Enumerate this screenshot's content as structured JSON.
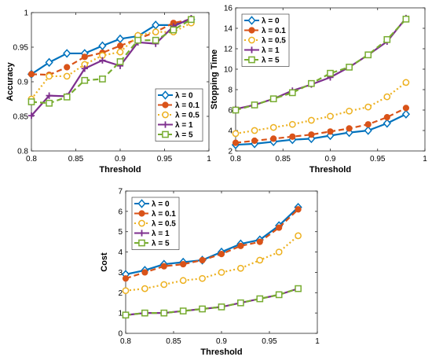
{
  "chart_data": [
    {
      "type": "line",
      "xlabel": "Threshold",
      "ylabel": "Accuracy",
      "xlim": [
        0.8,
        1
      ],
      "ylim": [
        0.8,
        1
      ],
      "xticks": [
        0.8,
        0.85,
        0.9,
        0.95,
        1
      ],
      "yticks": [
        0.8,
        0.85,
        0.9,
        0.95,
        1
      ],
      "x": [
        0.8,
        0.82,
        0.84,
        0.86,
        0.88,
        0.9,
        0.92,
        0.94,
        0.96,
        0.98
      ],
      "legend": "bottom-right",
      "grid": false,
      "series": [
        {
          "name": "λ = 0",
          "values": [
            0.911,
            0.928,
            0.941,
            0.941,
            0.952,
            0.962,
            0.966,
            0.982,
            0.982,
            0.99
          ]
        },
        {
          "name": "λ = 0.1",
          "values": [
            0.911,
            0.91,
            0.921,
            0.936,
            0.942,
            0.952,
            0.962,
            0.972,
            0.985,
            0.99
          ]
        },
        {
          "name": "λ = 0.5",
          "values": [
            0.875,
            0.908,
            0.908,
            0.925,
            0.938,
            0.943,
            0.967,
            0.972,
            0.972,
            0.985
          ]
        },
        {
          "name": "λ = 1",
          "values": [
            0.851,
            0.88,
            0.879,
            0.919,
            0.931,
            0.923,
            0.957,
            0.955,
            0.98,
            0.992
          ]
        },
        {
          "name": "λ = 5",
          "values": [
            0.871,
            0.869,
            0.878,
            0.902,
            0.904,
            0.929,
            0.96,
            0.96,
            0.975,
            0.99
          ]
        }
      ]
    },
    {
      "type": "line",
      "xlabel": "Threshold",
      "ylabel": "Stopping Time",
      "xlim": [
        0.8,
        1
      ],
      "ylim": [
        2,
        16
      ],
      "xticks": [
        0.8,
        0.85,
        0.9,
        0.95,
        1
      ],
      "yticks": [
        2,
        4,
        6,
        8,
        10,
        12,
        14,
        16
      ],
      "x": [
        0.8,
        0.82,
        0.84,
        0.86,
        0.88,
        0.9,
        0.92,
        0.94,
        0.96,
        0.98
      ],
      "legend": "top-left",
      "grid": false,
      "series": [
        {
          "name": "λ = 0",
          "values": [
            2.6,
            2.7,
            2.9,
            3.1,
            3.2,
            3.5,
            3.8,
            4.0,
            4.7,
            5.6
          ]
        },
        {
          "name": "λ = 0.1",
          "values": [
            2.8,
            3.0,
            3.2,
            3.4,
            3.6,
            3.9,
            4.2,
            4.6,
            5.3,
            6.2
          ]
        },
        {
          "name": "λ = 0.5",
          "values": [
            3.7,
            4.0,
            4.3,
            4.6,
            5.0,
            5.4,
            5.9,
            6.3,
            7.3,
            8.7
          ]
        },
        {
          "name": "λ = 1",
          "values": [
            6.1,
            6.5,
            7.1,
            7.9,
            8.5,
            9.2,
            10.2,
            11.4,
            12.7,
            15.0
          ]
        },
        {
          "name": "λ = 5",
          "values": [
            6.0,
            6.5,
            7.1,
            7.7,
            8.6,
            9.6,
            10.2,
            11.4,
            12.9,
            14.9
          ]
        }
      ]
    },
    {
      "type": "line",
      "xlabel": "Threshold",
      "ylabel": "Cost",
      "xlim": [
        0.8,
        1
      ],
      "ylim": [
        0,
        7
      ],
      "xticks": [
        0.8,
        0.85,
        0.9,
        0.95,
        1
      ],
      "yticks": [
        0,
        1,
        2,
        3,
        4,
        5,
        6,
        7
      ],
      "x": [
        0.8,
        0.82,
        0.84,
        0.86,
        0.88,
        0.9,
        0.92,
        0.94,
        0.96,
        0.98
      ],
      "legend": "top-left",
      "grid": false,
      "series": [
        {
          "name": "λ = 0",
          "values": [
            2.9,
            3.1,
            3.4,
            3.5,
            3.6,
            4.0,
            4.4,
            4.6,
            5.3,
            6.2
          ]
        },
        {
          "name": "λ = 0.1",
          "values": [
            2.7,
            3.0,
            3.3,
            3.4,
            3.6,
            3.9,
            4.3,
            4.5,
            5.2,
            6.1
          ]
        },
        {
          "name": "λ = 0.5",
          "values": [
            2.1,
            2.2,
            2.4,
            2.6,
            2.7,
            3.0,
            3.2,
            3.6,
            4.0,
            4.8
          ]
        },
        {
          "name": "λ = 1",
          "values": [
            0.9,
            1.0,
            1.0,
            1.1,
            1.2,
            1.3,
            1.5,
            1.7,
            1.9,
            2.2
          ]
        },
        {
          "name": "λ = 5",
          "values": [
            0.9,
            1.0,
            1.0,
            1.1,
            1.2,
            1.3,
            1.5,
            1.7,
            1.9,
            2.2
          ]
        }
      ]
    }
  ],
  "series_colors": [
    "#0072BD",
    "#D95319",
    "#EDB120",
    "#7E2F8E",
    "#77AC30"
  ],
  "series_markers": [
    "diamond",
    "circle",
    "circle-open",
    "plus",
    "square-open"
  ],
  "series_dashes": [
    "solid",
    "dashed",
    "dotted",
    "solid",
    "dashed"
  ]
}
